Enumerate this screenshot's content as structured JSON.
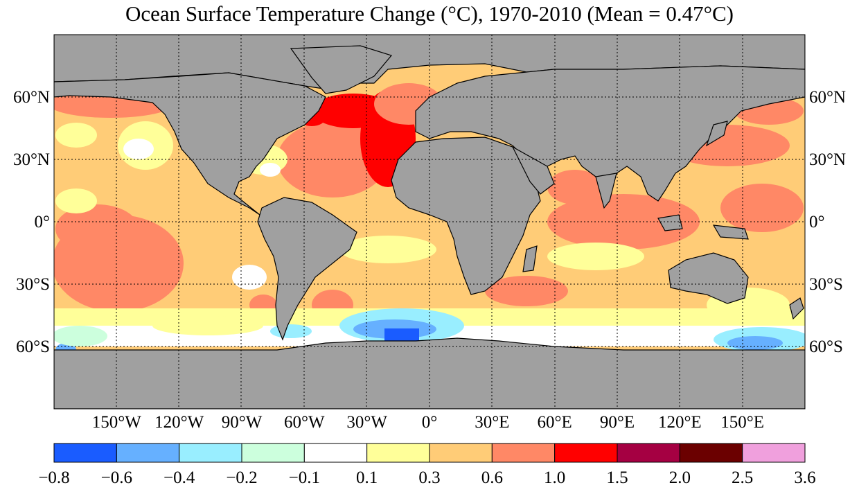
{
  "title": "Ocean Surface Temperature Change (°C), 1970-2010 (Mean = 0.47°C)",
  "map": {
    "projection": "equirectangular",
    "lon_range": [
      -180,
      180
    ],
    "lat_range": [
      -90,
      90
    ],
    "land_color": "#a0a0a0",
    "graticule": "dotted",
    "lat_tick_labels": [
      {
        "lat": 60,
        "label": "60°N"
      },
      {
        "lat": 30,
        "label": "30°N"
      },
      {
        "lat": 0,
        "label": "0°"
      },
      {
        "lat": -30,
        "label": "30°S"
      },
      {
        "lat": -60,
        "label": "60°S"
      }
    ],
    "lon_tick_labels": [
      {
        "lon": -150,
        "label": "150°W"
      },
      {
        "lon": -120,
        "label": "120°W"
      },
      {
        "lon": -90,
        "label": "90°W"
      },
      {
        "lon": -60,
        "label": "60°W"
      },
      {
        "lon": -30,
        "label": "30°W"
      },
      {
        "lon": 0,
        "label": "0°"
      },
      {
        "lon": 30,
        "label": "30°E"
      },
      {
        "lon": 60,
        "label": "60°E"
      },
      {
        "lon": 90,
        "label": "90°E"
      },
      {
        "lon": 120,
        "label": "120°E"
      },
      {
        "lon": 150,
        "label": "150°E"
      }
    ]
  },
  "colorbar": {
    "boundaries": [
      "−0.8",
      "−0.6",
      "−0.4",
      "−0.2",
      "−0.1",
      "0.1",
      "0.3",
      "0.6",
      "1.0",
      "1.5",
      "2.0",
      "2.5",
      "3.6"
    ],
    "colors": [
      "#1a5cff",
      "#66b0ff",
      "#99eeff",
      "#ccffdd",
      "#ffffff",
      "#ffff99",
      "#ffcc77",
      "#ff8866",
      "#ff0000",
      "#a50042",
      "#6b0000",
      "#f0a0dd"
    ]
  }
}
